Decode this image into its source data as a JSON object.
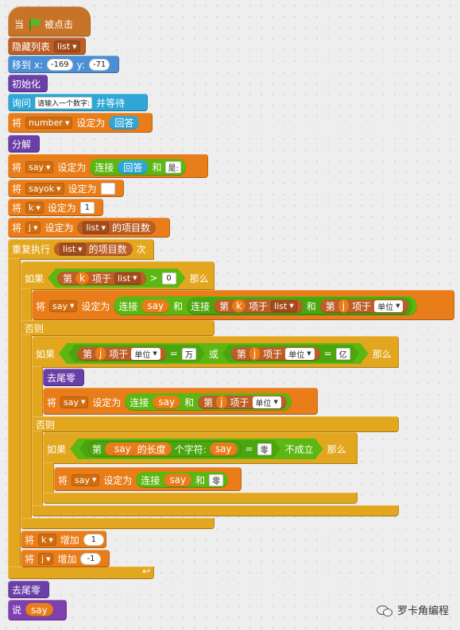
{
  "hat": {
    "when": "当",
    "clicked": "被点击"
  },
  "b_hide": {
    "label": "隐藏列表",
    "list": "list"
  },
  "b_goto": {
    "label": "移到 x:",
    "x": "-169",
    "ylabel": "y:",
    "y": "-71"
  },
  "b_init": {
    "label": "初始化"
  },
  "b_ask": {
    "label": "询问",
    "prompt": "请输入一个数字:",
    "wait": "并等待"
  },
  "b_setnum": {
    "set": "将",
    "var": "number",
    "to": "设定为",
    "answer": "回答"
  },
  "b_split": {
    "label": "分解"
  },
  "b_setsay": {
    "set": "将",
    "var": "say",
    "to": "设定为",
    "join": "连接",
    "answer": "回答",
    "and": "和",
    "text": "是:"
  },
  "b_setsayok": {
    "set": "将",
    "var": "sayok",
    "to": "设定为",
    "value": ""
  },
  "b_setk": {
    "set": "将",
    "var": "k",
    "to": "设定为",
    "value": "1"
  },
  "b_setj": {
    "set": "将",
    "var": "j",
    "to": "设定为",
    "list": "list",
    "count": "的项目数"
  },
  "b_repeat": {
    "label": "重复执行",
    "list": "list",
    "count": "的项目数",
    "times": "次"
  },
  "if1": {
    "if": "如果",
    "nth": "第",
    "k": "k",
    "item": "项于",
    "list": "list",
    "gt": ">",
    "zero": "0",
    "then": "那么"
  },
  "b_set_say2": {
    "set": "将",
    "var": "say",
    "to": "设定为",
    "join": "连接",
    "say": "say",
    "and": "和",
    "join2": "连接",
    "nth": "第",
    "k": "k",
    "item": "项于",
    "list": "list",
    "and2": "和",
    "nth2": "第",
    "j": "j",
    "item2": "项于",
    "unit": "单位"
  },
  "else1": {
    "label": "否则"
  },
  "if2": {
    "if": "如果",
    "nth": "第",
    "j": "j",
    "item": "项于",
    "unit": "单位",
    "eq": "=",
    "wan": "万",
    "or": "或",
    "nth2": "第",
    "j2": "j",
    "item2": "项于",
    "unit2": "单位",
    "eq2": "=",
    "yi": "亿",
    "then": "那么"
  },
  "b_trim1": {
    "label": "去尾零"
  },
  "b_set_say3": {
    "set": "将",
    "var": "say",
    "to": "设定为",
    "join": "连接",
    "say": "say",
    "and": "和",
    "nth": "第",
    "j": "j",
    "item": "项于",
    "unit": "单位"
  },
  "else2": {
    "label": "否则"
  },
  "if3": {
    "if": "如果",
    "nth": "第",
    "say": "say",
    "len": "的长度",
    "char": "个字符:",
    "say2": "say",
    "eq": "=",
    "zero": "零",
    "not": "不成立",
    "then": "那么"
  },
  "b_set_say4": {
    "set": "将",
    "var": "say",
    "to": "设定为",
    "join": "连接",
    "say": "say",
    "and": "和",
    "zero": "零"
  },
  "b_chk": {
    "change": "将",
    "var": "k",
    "by": "增加",
    "value": "1"
  },
  "b_chj": {
    "change": "将",
    "var": "j",
    "by": "增加",
    "value": "-1"
  },
  "b_trim2": {
    "label": "去尾零"
  },
  "b_say": {
    "label": "说",
    "value": "say"
  },
  "watermark": {
    "text": "罗卡角编程"
  }
}
